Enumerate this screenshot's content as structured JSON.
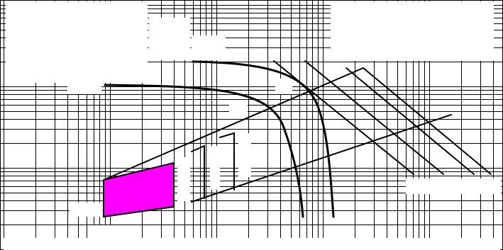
{
  "diagram": {
    "type": "log-log performance chart",
    "colors": {
      "background": "#ffffff",
      "grid": "#000000",
      "curves": "#000000",
      "highlight_region": "#ff00ff"
    },
    "text": []
  }
}
